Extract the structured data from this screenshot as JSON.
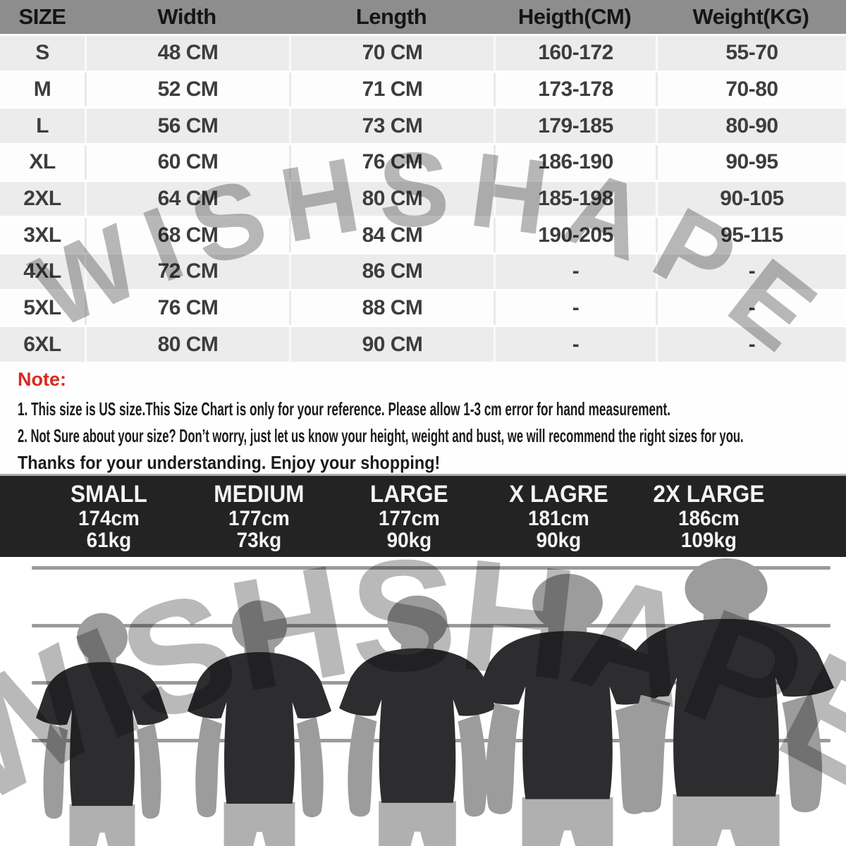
{
  "size_table": {
    "headers": [
      "SIZE",
      "Width",
      "Length",
      "Heigth(CM)",
      "Weight(KG)"
    ],
    "rows": [
      [
        "S",
        "48 CM",
        "70 CM",
        "160-172",
        "55-70"
      ],
      [
        "M",
        "52 CM",
        "71 CM",
        "173-178",
        "70-80"
      ],
      [
        "L",
        "56 CM",
        "73 CM",
        "179-185",
        "80-90"
      ],
      [
        "XL",
        "60 CM",
        "76 CM",
        "186-190",
        "90-95"
      ],
      [
        "2XL",
        "64 CM",
        "80 CM",
        "185-198",
        "90-105"
      ],
      [
        "3XL",
        "68 CM",
        "84 CM",
        "190-205",
        "95-115"
      ],
      [
        "4XL",
        "72 CM",
        "86 CM",
        "-",
        "-"
      ],
      [
        "5XL",
        "76 CM",
        "88 CM",
        "-",
        "-"
      ],
      [
        "6XL",
        "80 CM",
        "90 CM",
        "-",
        "-"
      ]
    ]
  },
  "notes": {
    "label": "Note:",
    "lines": [
      "1. This size is US size.This Size Chart is only for your reference. Please allow 1-3 cm error for hand measurement.",
      "2. Not Sure about your size? Don’t worry, just let us know your height, weight and bust, we will recommend the right sizes for you.",
      "Thanks for your understanding. Enjoy your shopping!"
    ]
  },
  "model_sizes": [
    {
      "label": "SMALL",
      "height": "174cm",
      "weight": "61kg"
    },
    {
      "label": "MEDIUM",
      "height": "177cm",
      "weight": "73kg"
    },
    {
      "label": "LARGE",
      "height": "177cm",
      "weight": "90kg"
    },
    {
      "label": "X LAGRE",
      "height": "181cm",
      "weight": "90kg"
    },
    {
      "label": "2X LARGE",
      "height": "186cm",
      "weight": "109kg"
    }
  ],
  "watermark": "WISHSHAPE",
  "colors": {
    "header_gray": "#8d8d8d",
    "row_gray": "#ececec",
    "row_white": "#fdfdfd",
    "note_red": "#d92a21",
    "band_bg": "#232323",
    "band_text": "#f4f4f4",
    "wall_line": "#9a9a9a",
    "shirt": "#2d2d30",
    "skin": "#9c9c9c",
    "pants": "#b0b0b0",
    "watermark_gray": "#b9b9b9"
  }
}
